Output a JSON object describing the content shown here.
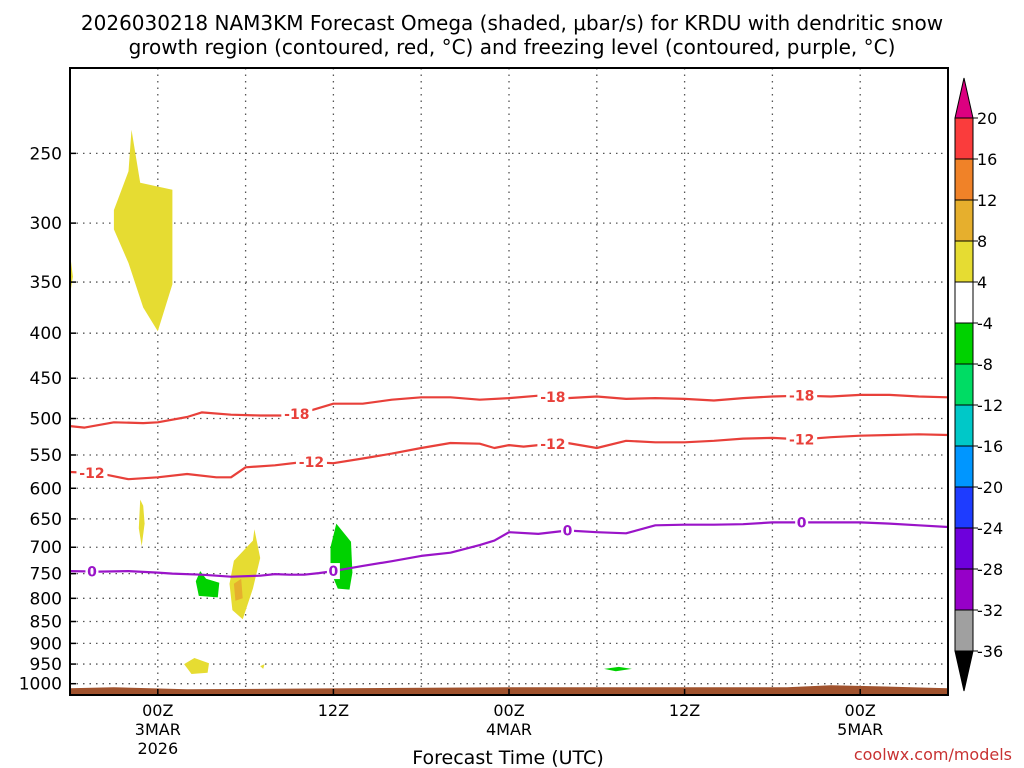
{
  "chart_data": {
    "type": "heatmap",
    "title_line1": "2026030218 NAM3KM Forecast Omega (shaded, μbar/s) for KRDU with dendritic snow",
    "title_line2": "growth region (contoured, red, °C) and freezing level (contoured, purple, °C)",
    "xlabel": "Forecast Time (UTC)",
    "xlim_hours": [
      -6,
      54
    ],
    "x_ticks": [
      {
        "hour": 0,
        "label": "00Z",
        "sub1": "3MAR",
        "sub2": "2026"
      },
      {
        "hour": 12,
        "label": "12Z",
        "sub1": "",
        "sub2": ""
      },
      {
        "hour": 24,
        "label": "00Z",
        "sub1": "4MAR",
        "sub2": ""
      },
      {
        "hour": 36,
        "label": "12Z",
        "sub1": "",
        "sub2": ""
      },
      {
        "hour": 48,
        "label": "00Z",
        "sub1": "5MAR",
        "sub2": ""
      }
    ],
    "y_axis": "pressure (hPa), log scale, inverted",
    "ylim_hpa": [
      1030,
      200
    ],
    "y_ticks": [
      250,
      300,
      350,
      400,
      450,
      500,
      550,
      600,
      650,
      700,
      750,
      800,
      850,
      900,
      950,
      1000
    ],
    "grid": "dotted, on",
    "colorbar": {
      "levels": [
        -36,
        -32,
        -28,
        -24,
        -20,
        -16,
        -12,
        -8,
        -4,
        4,
        8,
        12,
        16,
        20
      ],
      "colors": [
        "#000000",
        "#a0a0a0",
        "#9600c8",
        "#6e00dc",
        "#1e3cff",
        "#0096ff",
        "#00c8c8",
        "#00dc64",
        "#00d200",
        "#ffffff",
        "#e6dc32",
        "#e6af2d",
        "#f08228",
        "#fa3c3c",
        "#dc0080"
      ],
      "extends": "both"
    },
    "contour_series": [
      {
        "name": "-18",
        "color": "#e8403a",
        "labels_at_hours": [
          9.5,
          27,
          44
        ],
        "points": [
          [
            -6,
            510
          ],
          [
            -5,
            512
          ],
          [
            -3,
            505
          ],
          [
            -1,
            506
          ],
          [
            0,
            505
          ],
          [
            2,
            498
          ],
          [
            3,
            492
          ],
          [
            5,
            495
          ],
          [
            7,
            496
          ],
          [
            9,
            496
          ],
          [
            10,
            492
          ],
          [
            12,
            481
          ],
          [
            14,
            481
          ],
          [
            16,
            476
          ],
          [
            18,
            473
          ],
          [
            20,
            473
          ],
          [
            22,
            476
          ],
          [
            24,
            474
          ],
          [
            26,
            471
          ],
          [
            28,
            474
          ],
          [
            30,
            472
          ],
          [
            32,
            475
          ],
          [
            34,
            474
          ],
          [
            36,
            475
          ],
          [
            38,
            477
          ],
          [
            40,
            474
          ],
          [
            42,
            472
          ],
          [
            44,
            471
          ],
          [
            46,
            472
          ],
          [
            48,
            470
          ],
          [
            50,
            470
          ],
          [
            52,
            472
          ],
          [
            54,
            473
          ]
        ]
      },
      {
        "name": "-12",
        "color": "#e8403a",
        "labels_at_hours": [
          -4.5,
          10.5,
          27,
          44
        ],
        "points": [
          [
            -6,
            575
          ],
          [
            -4,
            577
          ],
          [
            -2,
            586
          ],
          [
            0,
            583
          ],
          [
            2,
            578
          ],
          [
            4,
            583
          ],
          [
            5,
            583
          ],
          [
            6,
            568
          ],
          [
            8,
            565
          ],
          [
            10,
            560
          ],
          [
            12,
            562
          ],
          [
            14,
            555
          ],
          [
            16,
            548
          ],
          [
            18,
            540
          ],
          [
            20,
            533
          ],
          [
            22,
            534
          ],
          [
            23,
            540
          ],
          [
            24,
            536
          ],
          [
            25,
            538
          ],
          [
            26,
            536
          ],
          [
            28,
            533
          ],
          [
            30,
            540
          ],
          [
            32,
            530
          ],
          [
            34,
            532
          ],
          [
            36,
            532
          ],
          [
            38,
            530
          ],
          [
            40,
            527
          ],
          [
            42,
            526
          ],
          [
            44,
            528
          ],
          [
            46,
            525
          ],
          [
            48,
            523
          ],
          [
            50,
            522
          ],
          [
            52,
            521
          ],
          [
            54,
            522
          ]
        ]
      },
      {
        "name": "0",
        "color": "#9a14c8",
        "labels_at_hours": [
          -4.5,
          12,
          28,
          44
        ],
        "points": [
          [
            -6,
            745
          ],
          [
            -4,
            746
          ],
          [
            -2,
            745
          ],
          [
            0,
            748
          ],
          [
            1,
            750
          ],
          [
            3,
            752
          ],
          [
            5,
            756
          ],
          [
            7,
            754
          ],
          [
            8,
            751
          ],
          [
            9,
            752
          ],
          [
            10,
            752
          ],
          [
            11,
            749
          ],
          [
            12,
            745
          ],
          [
            14,
            735
          ],
          [
            16,
            726
          ],
          [
            18,
            716
          ],
          [
            20,
            710
          ],
          [
            22,
            696
          ],
          [
            23,
            688
          ],
          [
            24,
            673
          ],
          [
            26,
            676
          ],
          [
            28,
            670
          ],
          [
            30,
            673
          ],
          [
            32,
            675
          ],
          [
            34,
            661
          ],
          [
            36,
            660
          ],
          [
            38,
            660
          ],
          [
            40,
            659
          ],
          [
            42,
            656
          ],
          [
            44,
            656
          ],
          [
            46,
            656
          ],
          [
            48,
            656
          ],
          [
            50,
            658
          ],
          [
            52,
            661
          ],
          [
            54,
            664
          ]
        ]
      }
    ],
    "shaded_regions": [
      {
        "interval": "4 to 8",
        "color": "#e6dc32",
        "points": [
          [
            -3,
            290
          ],
          [
            -2,
            262
          ],
          [
            -1.8,
            235
          ],
          [
            -1.2,
            270
          ],
          [
            1,
            275
          ],
          [
            1,
            352
          ],
          [
            0,
            398
          ],
          [
            -1,
            374
          ],
          [
            -2,
            333
          ],
          [
            -3,
            305
          ]
        ]
      },
      {
        "interval": "4 to 8",
        "color": "#e6dc32",
        "points": [
          [
            -6,
            325
          ],
          [
            -5.8,
            345
          ],
          [
            -6,
            362
          ]
        ]
      },
      {
        "interval": "4 to 8",
        "color": "#e6dc32",
        "points": [
          [
            -1.2,
            618
          ],
          [
            -1,
            628
          ],
          [
            -0.9,
            658
          ],
          [
            -1.1,
            698
          ],
          [
            -1.3,
            666
          ]
        ]
      },
      {
        "interval": "4 to 8",
        "color": "#e6dc32",
        "points": [
          [
            5.2,
            725
          ],
          [
            6.5,
            688
          ],
          [
            6.6,
            668
          ],
          [
            7,
            720
          ],
          [
            6.5,
            780
          ],
          [
            5.8,
            845
          ],
          [
            5.1,
            825
          ],
          [
            4.9,
            770
          ]
        ]
      },
      {
        "interval": "8 to 12",
        "color": "#e6af2d",
        "points": [
          [
            5.2,
            770
          ],
          [
            5.7,
            760
          ],
          [
            5.8,
            800
          ],
          [
            5.3,
            805
          ]
        ]
      },
      {
        "interval": "-8 to -4",
        "color": "#00d200",
        "points": [
          [
            2.6,
            765
          ],
          [
            2.9,
            745
          ],
          [
            3.3,
            760
          ],
          [
            4.2,
            768
          ],
          [
            4.1,
            798
          ],
          [
            2.8,
            795
          ]
        ]
      },
      {
        "interval": "-8 to -4",
        "color": "#00d200",
        "points": [
          [
            11.8,
            700
          ],
          [
            12.2,
            658
          ],
          [
            13.2,
            690
          ],
          [
            13.3,
            748
          ],
          [
            13.1,
            782
          ],
          [
            12.3,
            780
          ],
          [
            11.8,
            745
          ]
        ]
      },
      {
        "interval": "4 to 8",
        "color": "#e6dc32",
        "points": [
          [
            1.8,
            950
          ],
          [
            2.5,
            935
          ],
          [
            3.5,
            948
          ],
          [
            3.4,
            972
          ],
          [
            2.3,
            975
          ]
        ]
      },
      {
        "interval": "4 to 8",
        "color": "#e6dc32",
        "points": [
          [
            7,
            955
          ],
          [
            7.3,
            950
          ],
          [
            7.2,
            962
          ]
        ]
      },
      {
        "interval": "-8 to -4",
        "color": "#00d200",
        "points": [
          [
            30.5,
            962
          ],
          [
            31.5,
            957
          ],
          [
            32.4,
            962
          ],
          [
            31.3,
            968
          ]
        ]
      }
    ],
    "terrain": {
      "color": "#a0522d",
      "surface_hpa_approx": 1012
    }
  },
  "credit": "coolwx.com/models"
}
